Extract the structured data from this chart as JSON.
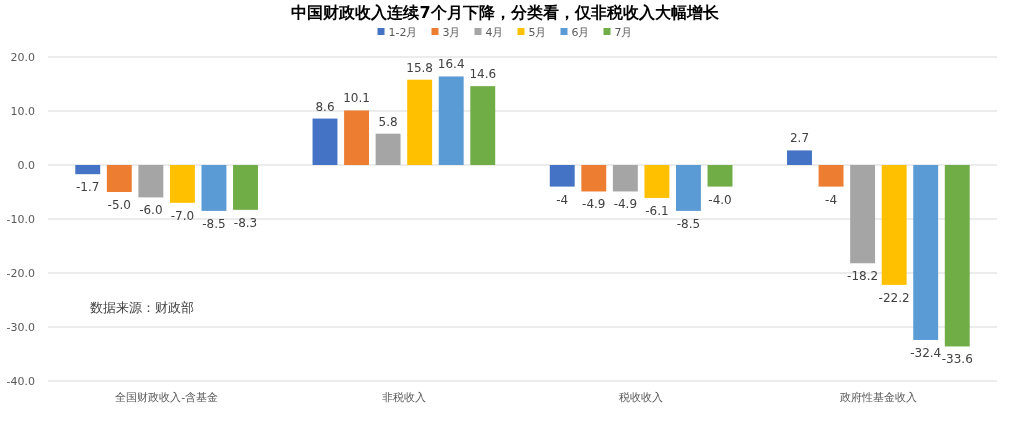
{
  "chart_data": {
    "type": "bar",
    "title": "中国财政收入连续7个月下降，分类看，仅非税收入大幅增长",
    "categories": [
      "全国财政收入-含基金",
      "非税收入",
      "税收收入",
      "政府性基金收入"
    ],
    "series": [
      {
        "name": "1-2月",
        "color": "#4472c4",
        "values": [
          -1.7,
          8.6,
          -4,
          2.7
        ],
        "value_labels": [
          "-1.7",
          "8.6",
          "-4",
          "2.7"
        ]
      },
      {
        "name": "3月",
        "color": "#ed7d31",
        "values": [
          -5.0,
          10.1,
          -4.9,
          -4
        ],
        "value_labels": [
          "-5.0",
          "10.1",
          "-4.9",
          "-4"
        ]
      },
      {
        "name": "4月",
        "color": "#a5a5a5",
        "values": [
          -6.0,
          5.8,
          -4.9,
          -18.2
        ],
        "value_labels": [
          "-6.0",
          "5.8",
          "-4.9",
          "-18.2"
        ]
      },
      {
        "name": "5月",
        "color": "#ffc000",
        "values": [
          -7.0,
          15.8,
          -6.1,
          -22.2
        ],
        "value_labels": [
          "-7.0",
          "15.8",
          "-6.1",
          "-22.2"
        ]
      },
      {
        "name": "6月",
        "color": "#5b9bd5",
        "values": [
          -8.5,
          16.4,
          -8.5,
          -32.4
        ],
        "value_labels": [
          "-8.5",
          "16.4",
          "-8.5",
          "-32.4"
        ]
      },
      {
        "name": "7月",
        "color": "#70ad47",
        "values": [
          -8.3,
          14.6,
          -4.0,
          -33.6
        ],
        "value_labels": [
          "-8.3",
          "14.6",
          "-4.0",
          "-33.6"
        ]
      }
    ],
    "ylim": [
      -40,
      20
    ],
    "yticks": [
      {
        "value": 20,
        "label": "20.0"
      },
      {
        "value": 10,
        "label": "10.0"
      },
      {
        "value": 0,
        "label": "0.0"
      },
      {
        "value": -10,
        "label": "-10.0"
      },
      {
        "value": -20,
        "label": "-20.0"
      },
      {
        "value": -30,
        "label": "-30.0"
      },
      {
        "value": -40,
        "label": "-40.0"
      }
    ],
    "grid": "y",
    "legend": "top",
    "annotations": [
      "数据来源：财政部"
    ]
  }
}
